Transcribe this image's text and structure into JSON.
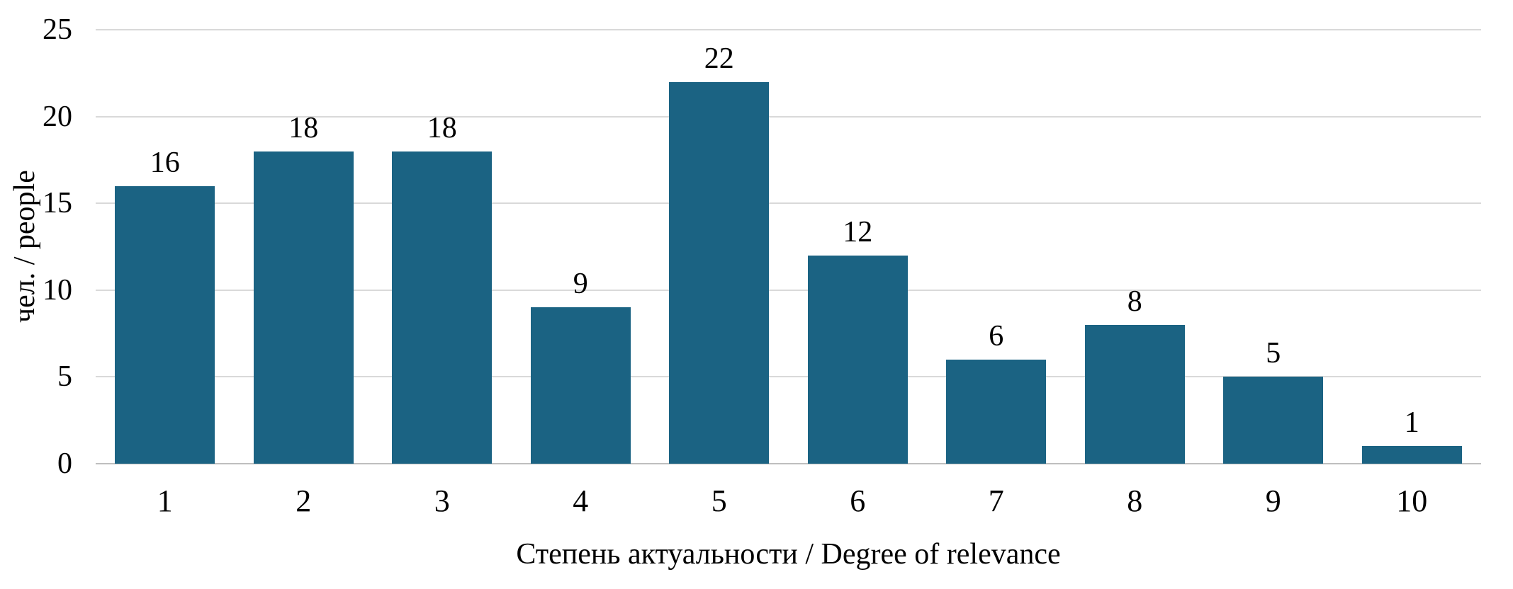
{
  "chart_data": {
    "type": "bar",
    "categories": [
      "1",
      "2",
      "3",
      "4",
      "5",
      "6",
      "7",
      "8",
      "9",
      "10"
    ],
    "values": [
      16,
      18,
      18,
      9,
      22,
      12,
      6,
      8,
      5,
      1
    ],
    "title": "",
    "xlabel": "Степень актуальности / Degree of relevance",
    "ylabel": "чел. / people",
    "ylim": [
      0,
      25
    ],
    "yticks": [
      0,
      5,
      10,
      15,
      20,
      25
    ],
    "grid": true,
    "legend": "none",
    "bar_color": "#1b6383",
    "gridline_color": "#d9d9d9",
    "axis_line_color": "#bfbfbf",
    "text_color": "#000000"
  }
}
